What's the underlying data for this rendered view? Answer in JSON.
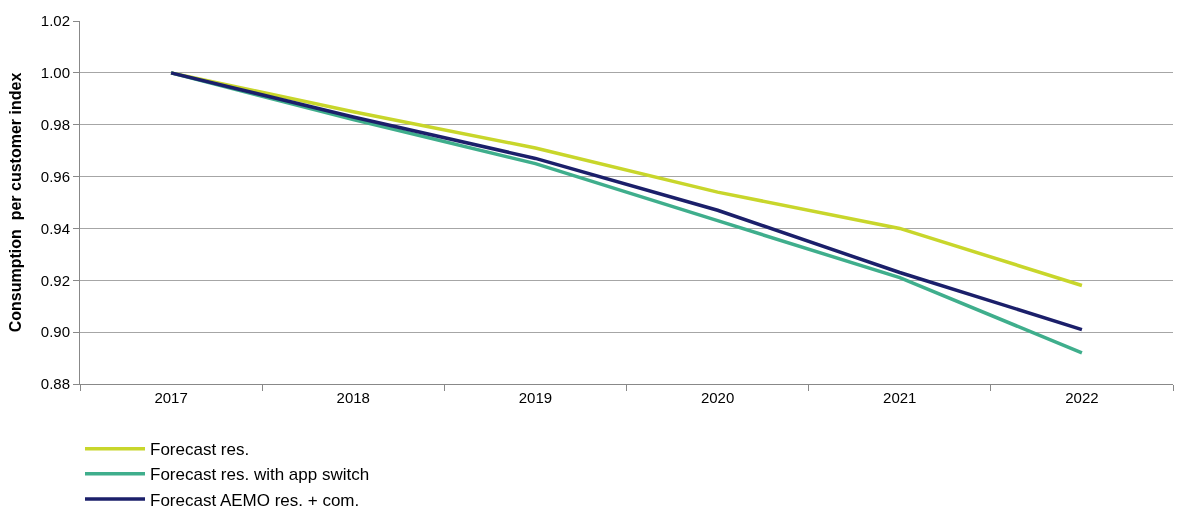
{
  "chart_data": {
    "type": "line",
    "ylabel": "Consumption  per customer index",
    "categories": [
      "2017",
      "2018",
      "2019",
      "2020",
      "2021",
      "2022"
    ],
    "series": [
      {
        "name": "Forecast res.",
        "color": "#c8d62b",
        "values": [
          1.0,
          0.985,
          0.971,
          0.954,
          0.94,
          0.918
        ]
      },
      {
        "name": "Forecast res. with app switch",
        "color": "#3fae8c",
        "values": [
          1.0,
          0.982,
          0.965,
          0.943,
          0.921,
          0.892
        ]
      },
      {
        "name": "Forecast AEMO res. + com.",
        "color": "#1b1f6a",
        "values": [
          1.0,
          0.983,
          0.967,
          0.947,
          0.923,
          0.901
        ]
      }
    ],
    "ylim": [
      0.88,
      1.02
    ],
    "yticks": [
      0.88,
      {
        "value": 0.9,
        "label": "0.90"
      },
      0.92,
      0.94,
      0.96,
      0.98,
      {
        "value": 1.0,
        "label": "1.00"
      },
      1.02
    ],
    "grid": "y",
    "legend": "bottom",
    "marker": "none",
    "line_style": "solid"
  }
}
